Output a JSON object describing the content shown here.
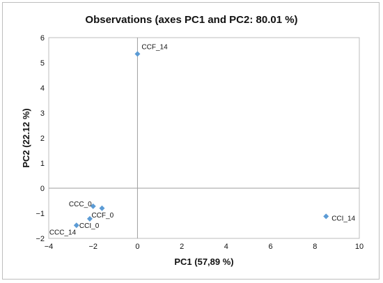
{
  "chart_data": {
    "type": "scatter",
    "title": "Observations (axes PC1 and PC2: 80.01 %)",
    "xlabel": "PC1 (57,89 %)",
    "ylabel": "PC2 (22.12 %)",
    "xlim": [
      -4,
      10
    ],
    "ylim": [
      -2,
      6
    ],
    "xticks": [
      -4,
      -2,
      0,
      2,
      4,
      6,
      8,
      10
    ],
    "yticks": [
      -2,
      -1,
      0,
      1,
      2,
      3,
      4,
      5,
      6
    ],
    "grid": false,
    "legend": "none",
    "marker_color": "#5b9bd5",
    "points": [
      {
        "label": "CCF_14",
        "x": 0.0,
        "y": 5.35
      },
      {
        "label": "CCC_0",
        "x": -2.0,
        "y": -0.72
      },
      {
        "label": "CCF_0",
        "x": -1.6,
        "y": -0.8
      },
      {
        "label": "CCI_0",
        "x": -2.15,
        "y": -1.22
      },
      {
        "label": "CCC_14",
        "x": -2.75,
        "y": -1.48
      },
      {
        "label": "CCI_14",
        "x": 8.5,
        "y": -1.12
      }
    ]
  }
}
